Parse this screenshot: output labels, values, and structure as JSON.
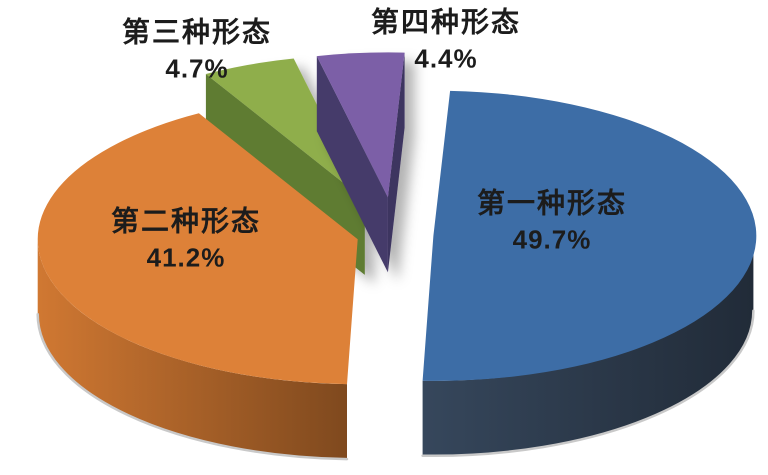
{
  "page": {
    "background": "#ffffff"
  },
  "chart_data": {
    "type": "pie",
    "style": "3d-exploded",
    "title": "",
    "unit": "percent",
    "total": 100.0,
    "start_angle_deg": 3,
    "legend": "none",
    "background": "#ffffff",
    "label_text_color": "#1c1c1c",
    "slices": [
      {
        "name": "第一种形态",
        "value": 49.7,
        "value_label": "49.7%",
        "color": "#3d6da6",
        "side_color": "#2e3c4e",
        "label_placement": "inside"
      },
      {
        "name": "第二种形态",
        "value": 41.2,
        "value_label": "41.2%",
        "color": "#dd8138",
        "side_color": "#b0662a",
        "label_placement": "inside"
      },
      {
        "name": "第三种形态",
        "value": 4.7,
        "value_label": "4.7%",
        "color": "#8fae4b",
        "side_color": "#5f7b33",
        "label_placement": "outside"
      },
      {
        "name": "第四种形态",
        "value": 4.4,
        "value_label": "4.4%",
        "color": "#7b5ea7",
        "side_color": "#453a6b",
        "label_placement": "outside"
      }
    ]
  }
}
